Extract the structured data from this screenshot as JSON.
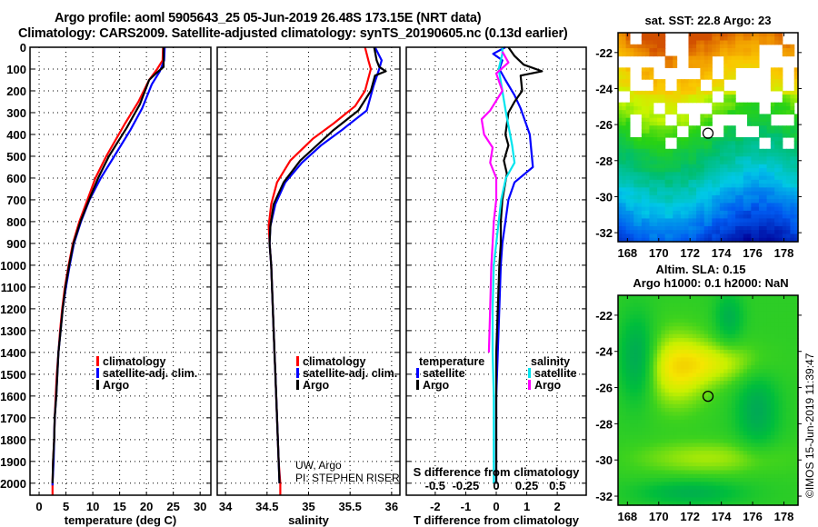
{
  "header": {
    "title_line1": "Argo profile: aoml 5905643_25 05-Jun-2019 26.48S 173.15E (NRT data)",
    "title_line2": "Climatology: CARS2009. Satellite-adjusted climatology: synTS_20190605.nc (0.13d earlier)"
  },
  "colors": {
    "climatology": "#ff0000",
    "satellite": "#0000ff",
    "argo": "#000000",
    "sat_salinity": "#00e5ee",
    "argo_salinity": "#ff00ff"
  },
  "chart_data": [
    {
      "id": "temperature",
      "type": "line",
      "xlabel": "temperature (deg C)",
      "ylabel": "depth",
      "xlim": [
        -1.7,
        32
      ],
      "ylim": [
        2055,
        0
      ],
      "xticks": [
        0,
        5,
        10,
        15,
        20,
        25,
        30
      ],
      "yticks": [
        0,
        100,
        200,
        300,
        400,
        500,
        600,
        700,
        800,
        900,
        1000,
        1100,
        1200,
        1300,
        1400,
        1500,
        1600,
        1700,
        1800,
        1900,
        2000
      ],
      "grid": true,
      "legend": {
        "position": "center-right",
        "entries": [
          "climatology",
          "satellite-adj. clim.",
          "Argo"
        ]
      },
      "series": [
        {
          "name": "climatology",
          "color": "#ff0000",
          "points": [
            [
              23.1,
              0
            ],
            [
              23.0,
              60
            ],
            [
              22.0,
              100
            ],
            [
              20.5,
              150
            ],
            [
              18.5,
              250
            ],
            [
              16.0,
              350
            ],
            [
              12.5,
              500
            ],
            [
              10.5,
              600
            ],
            [
              9.0,
              700
            ],
            [
              7.5,
              800
            ],
            [
              6.3,
              900
            ],
            [
              5.5,
              1000
            ],
            [
              4.8,
              1100
            ],
            [
              4.3,
              1200
            ],
            [
              3.9,
              1300
            ],
            [
              3.6,
              1400
            ],
            [
              3.3,
              1500
            ],
            [
              3.1,
              1600
            ],
            [
              2.9,
              1700
            ],
            [
              2.8,
              1800
            ],
            [
              2.6,
              1900
            ],
            [
              2.5,
              2000
            ],
            [
              2.5,
              2055
            ]
          ]
        },
        {
          "name": "satellite-adj. clim.",
          "color": "#0000ff",
          "points": [
            [
              23.4,
              0
            ],
            [
              23.3,
              60
            ],
            [
              22.5,
              110
            ],
            [
              21.0,
              170
            ],
            [
              19.2,
              280
            ],
            [
              17.0,
              380
            ],
            [
              14.0,
              500
            ],
            [
              11.5,
              600
            ],
            [
              9.4,
              700
            ],
            [
              7.8,
              800
            ],
            [
              6.5,
              900
            ],
            [
              5.7,
              1000
            ],
            [
              5.0,
              1100
            ],
            [
              4.4,
              1200
            ],
            [
              4.0,
              1300
            ],
            [
              3.6,
              1400
            ],
            [
              3.4,
              1500
            ],
            [
              3.2,
              1600
            ],
            [
              2.9,
              1700
            ],
            [
              2.8,
              1800
            ],
            [
              2.7,
              1900
            ],
            [
              2.5,
              2000
            ],
            [
              2.5,
              2010
            ]
          ]
        },
        {
          "name": "Argo",
          "color": "#000000",
          "points": [
            [
              23.2,
              0
            ],
            [
              23.2,
              90
            ],
            [
              22.0,
              115
            ],
            [
              20.5,
              150
            ],
            [
              18.8,
              260
            ],
            [
              16.3,
              370
            ],
            [
              13.0,
              500
            ],
            [
              11.0,
              600
            ],
            [
              9.3,
              700
            ],
            [
              7.7,
              800
            ],
            [
              6.4,
              900
            ],
            [
              5.6,
              1000
            ],
            [
              4.9,
              1100
            ],
            [
              4.4,
              1200
            ],
            [
              4.0,
              1300
            ],
            [
              3.6,
              1400
            ],
            [
              3.4,
              1500
            ],
            [
              3.2,
              1600
            ],
            [
              2.9,
              1700
            ],
            [
              2.8,
              1800
            ],
            [
              2.6,
              1900
            ],
            [
              2.5,
              2000
            ]
          ]
        }
      ]
    },
    {
      "id": "salinity",
      "type": "line",
      "xlabel": "salinity",
      "xlim": [
        33.9,
        36.1
      ],
      "ylim": [
        2055,
        0
      ],
      "xticks": [
        34,
        34.5,
        35,
        35.5,
        36
      ],
      "grid": true,
      "legend": {
        "position": "center-right",
        "entries": [
          "climatology",
          "satellite-adj. clim.",
          "Argo"
        ]
      },
      "annotation": [
        "UW, Argo",
        "PI: STEPHEN RISER"
      ],
      "series": [
        {
          "name": "climatology",
          "color": "#ff0000",
          "points": [
            [
              35.68,
              0
            ],
            [
              35.72,
              60
            ],
            [
              35.75,
              100
            ],
            [
              35.68,
              200
            ],
            [
              35.56,
              270
            ],
            [
              35.3,
              350
            ],
            [
              35.05,
              420
            ],
            [
              34.78,
              520
            ],
            [
              34.62,
              620
            ],
            [
              34.55,
              720
            ],
            [
              34.52,
              820
            ],
            [
              34.53,
              900
            ],
            [
              34.55,
              1000
            ],
            [
              34.56,
              1100
            ],
            [
              34.57,
              1200
            ],
            [
              34.58,
              1300
            ],
            [
              34.59,
              1400
            ],
            [
              34.6,
              1500
            ],
            [
              34.61,
              1600
            ],
            [
              34.62,
              1700
            ],
            [
              34.63,
              1800
            ],
            [
              34.64,
              1900
            ],
            [
              34.66,
              2000
            ],
            [
              34.66,
              2055
            ]
          ]
        },
        {
          "name": "satellite-adj. clim.",
          "color": "#0000ff",
          "points": [
            [
              35.8,
              0
            ],
            [
              35.88,
              60
            ],
            [
              35.85,
              100
            ],
            [
              35.78,
              180
            ],
            [
              35.7,
              290
            ],
            [
              35.4,
              380
            ],
            [
              35.15,
              450
            ],
            [
              34.92,
              530
            ],
            [
              34.72,
              620
            ],
            [
              34.6,
              720
            ],
            [
              34.54,
              820
            ],
            [
              34.53,
              900
            ],
            [
              34.55,
              1000
            ],
            [
              34.56,
              1100
            ],
            [
              34.57,
              1200
            ],
            [
              34.58,
              1300
            ],
            [
              34.59,
              1400
            ],
            [
              34.6,
              1500
            ],
            [
              34.61,
              1600
            ],
            [
              34.62,
              1700
            ],
            [
              34.63,
              1800
            ],
            [
              34.64,
              1900
            ],
            [
              34.65,
              2000
            ]
          ]
        },
        {
          "name": "Argo",
          "color": "#000000",
          "points": [
            [
              35.79,
              0
            ],
            [
              35.82,
              60
            ],
            [
              35.85,
              90
            ],
            [
              35.93,
              110
            ],
            [
              35.8,
              130
            ],
            [
              35.75,
              200
            ],
            [
              35.6,
              290
            ],
            [
              35.3,
              380
            ],
            [
              35.1,
              450
            ],
            [
              34.9,
              520
            ],
            [
              34.7,
              620
            ],
            [
              34.58,
              720
            ],
            [
              34.54,
              820
            ],
            [
              34.53,
              900
            ],
            [
              34.55,
              1000
            ],
            [
              34.56,
              1100
            ],
            [
              34.57,
              1200
            ],
            [
              34.58,
              1300
            ],
            [
              34.59,
              1400
            ],
            [
              34.6,
              1500
            ],
            [
              34.61,
              1600
            ],
            [
              34.62,
              1700
            ],
            [
              34.63,
              1800
            ],
            [
              34.64,
              1900
            ],
            [
              34.65,
              2000
            ]
          ]
        }
      ]
    },
    {
      "id": "difference",
      "type": "line",
      "xlabel": "T difference from climatology",
      "xlabel2": "S difference from climatology",
      "xlim": [
        -2.95,
        2.95
      ],
      "x2lim": [
        -0.737,
        0.737
      ],
      "ylim": [
        2055,
        0
      ],
      "xticks": [
        -2,
        -1,
        0,
        1,
        2
      ],
      "xticks_labels": [
        "-2",
        "-1",
        "0",
        "1",
        "2"
      ],
      "x2ticks": [
        -0.5,
        -0.25,
        0,
        0.25,
        0.5
      ],
      "x2ticks_labels": [
        "-0.5",
        "-0.25",
        "0",
        "0.25",
        "0.5"
      ],
      "grid": true,
      "legend": {
        "position": "lower-center",
        "temperature": {
          "heading": "temperature",
          "entries": [
            "satellite",
            "Argo"
          ]
        },
        "salinity": {
          "heading": "salinity",
          "entries": [
            "satellite",
            "Argo"
          ]
        }
      },
      "series": [
        {
          "name": "temperature satellite",
          "axis": "T",
          "color": "#0000ff",
          "points": [
            [
              0.3,
              0
            ],
            [
              -0.1,
              30
            ],
            [
              0.2,
              60
            ],
            [
              0.1,
              100
            ],
            [
              0.3,
              150
            ],
            [
              0.6,
              220
            ],
            [
              0.8,
              280
            ],
            [
              1.1,
              400
            ],
            [
              1.2,
              550
            ],
            [
              0.6,
              620
            ],
            [
              0.4,
              700
            ],
            [
              0.3,
              800
            ],
            [
              0.2,
              900
            ],
            [
              0.15,
              1000
            ],
            [
              0.1,
              1200
            ],
            [
              0.05,
              1400
            ],
            [
              0.0,
              1600
            ],
            [
              0.0,
              2000
            ]
          ]
        },
        {
          "name": "temperature Argo",
          "axis": "T",
          "color": "#000000",
          "points": [
            [
              0.4,
              0
            ],
            [
              0.6,
              40
            ],
            [
              0.9,
              80
            ],
            [
              1.5,
              110
            ],
            [
              0.8,
              130
            ],
            [
              0.85,
              200
            ],
            [
              0.6,
              250
            ],
            [
              0.4,
              300
            ],
            [
              0.3,
              400
            ],
            [
              0.4,
              450
            ],
            [
              0.25,
              520
            ],
            [
              0.35,
              580
            ],
            [
              0.2,
              700
            ],
            [
              0.15,
              800
            ],
            [
              0.15,
              900
            ],
            [
              0.1,
              1000
            ],
            [
              0.05,
              1200
            ],
            [
              0.0,
              1400
            ],
            [
              0.0,
              2000
            ]
          ]
        },
        {
          "name": "salinity satellite",
          "axis": "S",
          "color": "#00e5ee",
          "points": [
            [
              0.05,
              0
            ],
            [
              0.05,
              30
            ],
            [
              0.02,
              100
            ],
            [
              0.05,
              200
            ],
            [
              0.08,
              300
            ],
            [
              0.13,
              450
            ],
            [
              0.15,
              530
            ],
            [
              0.08,
              600
            ],
            [
              0.04,
              700
            ],
            [
              0.02,
              800
            ],
            [
              0.0,
              900
            ],
            [
              -0.02,
              1000
            ],
            [
              -0.03,
              1200
            ],
            [
              -0.03,
              1400
            ],
            [
              -0.02,
              1600
            ],
            [
              -0.02,
              2000
            ]
          ]
        },
        {
          "name": "salinity Argo",
          "axis": "S",
          "color": "#ff00ff",
          "points": [
            [
              0.05,
              20
            ],
            [
              0.1,
              70
            ],
            [
              0.0,
              120
            ],
            [
              0.05,
              200
            ],
            [
              -0.05,
              290
            ],
            [
              -0.12,
              330
            ],
            [
              -0.1,
              400
            ],
            [
              -0.03,
              460
            ],
            [
              -0.05,
              530
            ],
            [
              0.0,
              600
            ],
            [
              0.0,
              700
            ],
            [
              -0.02,
              800
            ],
            [
              -0.03,
              900
            ],
            [
              -0.04,
              1000
            ],
            [
              -0.05,
              1200
            ],
            [
              -0.06,
              1400
            ]
          ]
        }
      ]
    },
    {
      "id": "sst_map",
      "type": "heatmap",
      "title": "sat. SST: 22.8 Argo: 23",
      "xticks": [
        168,
        170,
        172,
        174,
        176,
        178
      ],
      "yticks": [
        -22,
        -24,
        -26,
        -28,
        -30,
        -32
      ],
      "xlim": [
        167.4,
        178.9
      ],
      "ylim": [
        -32.5,
        -20.9
      ],
      "marker": {
        "lon": 173.15,
        "lat": -26.48
      }
    },
    {
      "id": "sla_map",
      "type": "heatmap",
      "title_line1": "Altim. SLA: 0.15",
      "title_line2": "Argo h1000: 0.1 h2000: NaN",
      "xticks": [
        168,
        170,
        172,
        174,
        176,
        178
      ],
      "yticks": [
        -22,
        -24,
        -26,
        -28,
        -30,
        -32
      ],
      "xlim": [
        167.4,
        178.9
      ],
      "ylim": [
        -32.5,
        -20.9
      ],
      "marker": {
        "lon": 173.15,
        "lat": -26.48
      }
    }
  ],
  "footer": {
    "copyright": "©IMOS 15-Jun-2019 11:39:47"
  }
}
